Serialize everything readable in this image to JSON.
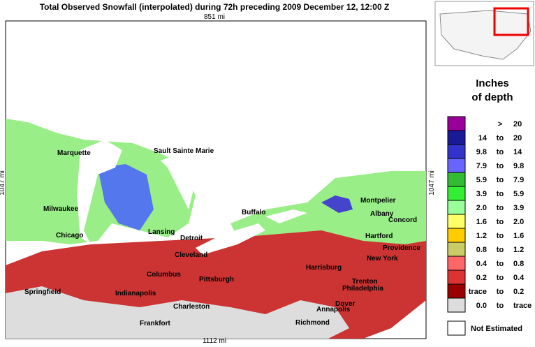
{
  "header": {
    "title": "Total Observed Snowfall (interpolated) during 72h preceding 2009 December 12, 12:00 Z"
  },
  "scale": {
    "top": "851 mi",
    "bottom": "1112 mi",
    "left": "1047 mi",
    "right": "1047 mi"
  },
  "legend": {
    "title_line1": "Inches",
    "title_line2": "of depth",
    "rows": [
      {
        "sep": ">",
        "to": "20",
        "color": "#990099"
      },
      {
        "from": "14",
        "sep": "to",
        "to": "20",
        "color": "#1a1a99"
      },
      {
        "from": "9.8",
        "sep": "to",
        "to": "14",
        "color": "#3333cc"
      },
      {
        "from": "7.9",
        "sep": "to",
        "to": "9.8",
        "color": "#6666ff"
      },
      {
        "from": "5.9",
        "sep": "to",
        "to": "7.9",
        "color": "#33bb33"
      },
      {
        "from": "3.9",
        "sep": "to",
        "to": "5.9",
        "color": "#33ee33"
      },
      {
        "from": "2.0",
        "sep": "to",
        "to": "3.9",
        "color": "#99ff99"
      },
      {
        "from": "1.6",
        "sep": "to",
        "to": "2.0",
        "color": "#ffff66"
      },
      {
        "from": "1.2",
        "sep": "to",
        "to": "1.6",
        "color": "#ffcc00"
      },
      {
        "from": "0.8",
        "sep": "to",
        "to": "1.2",
        "color": "#cccc66"
      },
      {
        "from": "0.4",
        "sep": "to",
        "to": "0.8",
        "color": "#ff6666"
      },
      {
        "from": "0.2",
        "sep": "to",
        "to": "0.4",
        "color": "#dd3333"
      },
      {
        "from": "trace",
        "sep": "to",
        "to": "0.2",
        "color": "#990000"
      },
      {
        "from": "0.0",
        "sep": "to",
        "to": "trace",
        "color": "#dddddd"
      }
    ],
    "not_estimated": "Not Estimated"
  },
  "cities": [
    "Marquette",
    "Sault Sainte Marie",
    "Milwaukee",
    "Chicago",
    "Lansing",
    "Detroit",
    "Buffalo",
    "Montpelier",
    "Albany",
    "Concord",
    "Hartford",
    "Providence",
    "New York",
    "Cleveland",
    "Columbus",
    "Pittsburgh",
    "Harrisburg",
    "Trenton",
    "Philadelphia",
    "Springfield",
    "Indianapolis",
    "Dover",
    "Annapolis",
    "Charleston",
    "Richmond",
    "Frankfort"
  ]
}
